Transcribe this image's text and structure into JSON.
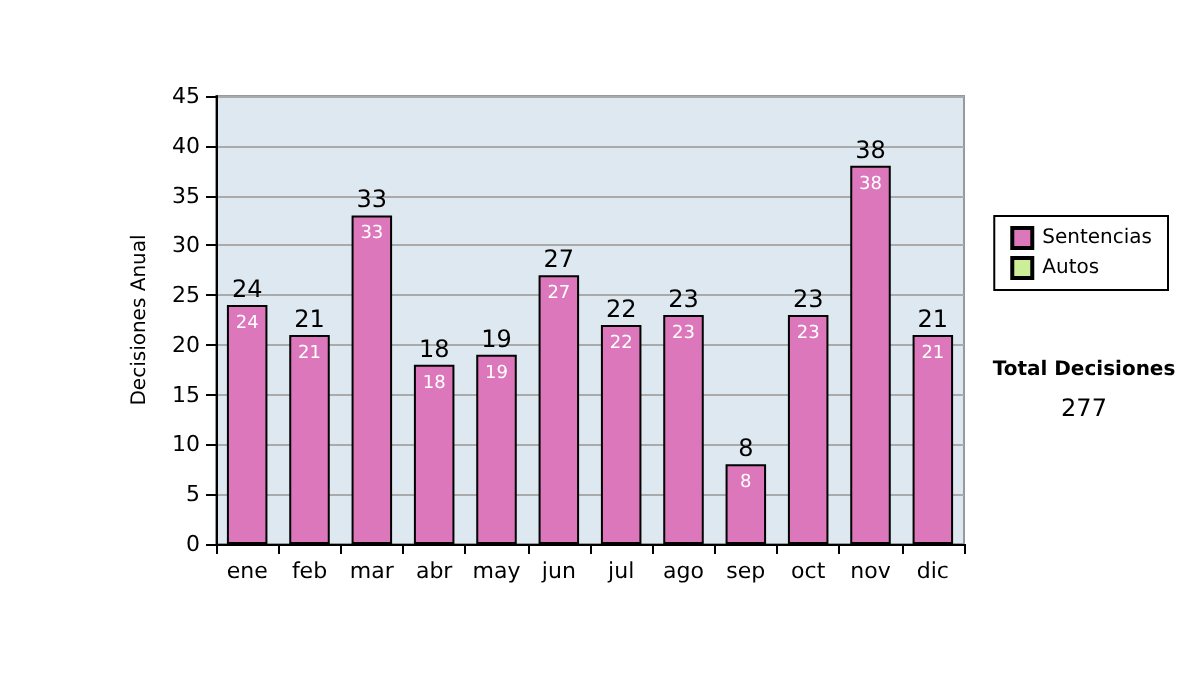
{
  "chart_data": {
    "type": "bar",
    "ylabel": "Decisiones Anual",
    "categories": [
      "ene",
      "feb",
      "mar",
      "abr",
      "may",
      "jun",
      "jul",
      "ago",
      "sep",
      "oct",
      "nov",
      "dic"
    ],
    "series": [
      {
        "name": "Sentencias",
        "color": "#dd77bb",
        "values": [
          24,
          21,
          33,
          18,
          19,
          27,
          22,
          23,
          8,
          23,
          38,
          21
        ]
      },
      {
        "name": "Autos",
        "color": "#ccee99",
        "values": [
          null,
          null,
          null,
          null,
          null,
          null,
          null,
          null,
          null,
          null,
          null,
          null
        ]
      }
    ],
    "stacked": true,
    "data_labels": true,
    "totals": [
      "24",
      "21",
      "33",
      "18",
      "19",
      "27",
      "22",
      "23",
      "8",
      "23",
      "38",
      "21"
    ],
    "ylim": [
      0,
      45
    ],
    "yticks": [
      0,
      5,
      10,
      15,
      20,
      25,
      30,
      35,
      40,
      45
    ],
    "grid": "y",
    "legend": "right",
    "annotations": [
      "Total Decisiones",
      "277"
    ]
  }
}
